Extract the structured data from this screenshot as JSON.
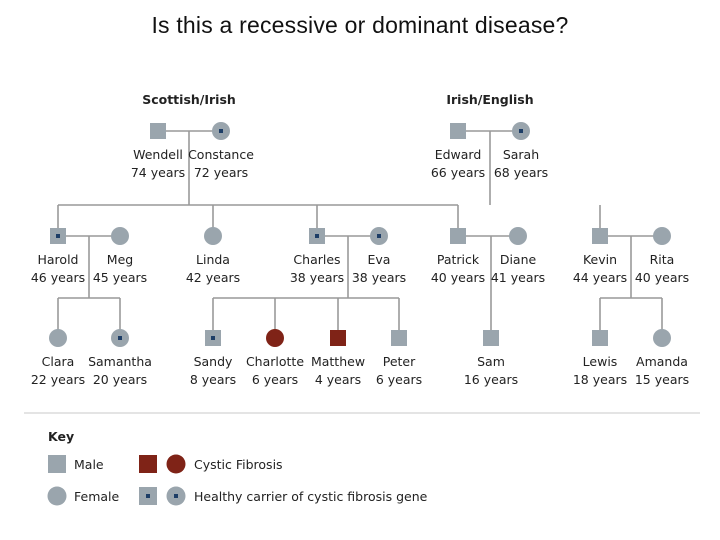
{
  "title": "Is this a recessive or dominant disease?",
  "colors": {
    "normal": "#9aa5ad",
    "affected": "#7f2317",
    "carrier_dot": "#1d3d66",
    "line": "#999999"
  },
  "groups": [
    {
      "id": "g-scottish",
      "label": "Scottish/Irish"
    },
    {
      "id": "g-irish",
      "label": "Irish/English"
    }
  ],
  "people": [
    {
      "id": "wendell",
      "name": "Wendell",
      "age": "74 years",
      "sex": "male",
      "status": "normal"
    },
    {
      "id": "constance",
      "name": "Constance",
      "age": "72 years",
      "sex": "female",
      "status": "carrier"
    },
    {
      "id": "edward",
      "name": "Edward",
      "age": "66 years",
      "sex": "male",
      "status": "normal"
    },
    {
      "id": "sarah",
      "name": "Sarah",
      "age": "68 years",
      "sex": "female",
      "status": "carrier"
    },
    {
      "id": "harold",
      "name": "Harold",
      "age": "46 years",
      "sex": "male",
      "status": "carrier"
    },
    {
      "id": "meg",
      "name": "Meg",
      "age": "45 years",
      "sex": "female",
      "status": "normal"
    },
    {
      "id": "linda",
      "name": "Linda",
      "age": "42 years",
      "sex": "female",
      "status": "normal"
    },
    {
      "id": "charles",
      "name": "Charles",
      "age": "38 years",
      "sex": "male",
      "status": "carrier"
    },
    {
      "id": "eva",
      "name": "Eva",
      "age": "38 years",
      "sex": "female",
      "status": "carrier"
    },
    {
      "id": "patrick",
      "name": "Patrick",
      "age": "40 years",
      "sex": "male",
      "status": "normal"
    },
    {
      "id": "diane",
      "name": "Diane",
      "age": "41 years",
      "sex": "female",
      "status": "normal"
    },
    {
      "id": "kevin",
      "name": "Kevin",
      "age": "44 years",
      "sex": "male",
      "status": "normal"
    },
    {
      "id": "rita",
      "name": "Rita",
      "age": "40 years",
      "sex": "female",
      "status": "normal"
    },
    {
      "id": "clara",
      "name": "Clara",
      "age": "22 years",
      "sex": "female",
      "status": "normal"
    },
    {
      "id": "samantha",
      "name": "Samantha",
      "age": "20 years",
      "sex": "female",
      "status": "carrier"
    },
    {
      "id": "sandy",
      "name": "Sandy",
      "age": "8 years",
      "sex": "male",
      "status": "carrier"
    },
    {
      "id": "charlotte",
      "name": "Charlotte",
      "age": "6 years",
      "sex": "female",
      "status": "affected"
    },
    {
      "id": "matthew",
      "name": "Matthew",
      "age": "4 years",
      "sex": "male",
      "status": "affected"
    },
    {
      "id": "peter",
      "name": "Peter",
      "age": "6 years",
      "sex": "male",
      "status": "normal"
    },
    {
      "id": "sam",
      "name": "Sam",
      "age": "16 years",
      "sex": "male",
      "status": "normal"
    },
    {
      "id": "lewis",
      "name": "Lewis",
      "age": "18 years",
      "sex": "male",
      "status": "normal"
    },
    {
      "id": "amanda",
      "name": "Amanda",
      "age": "15 years",
      "sex": "female",
      "status": "normal"
    }
  ],
  "key": {
    "heading": "Key",
    "male": "Male",
    "female": "Female",
    "affected": "Cystic Fibrosis",
    "carrier": "Healthy carrier of cystic fibrosis gene"
  }
}
